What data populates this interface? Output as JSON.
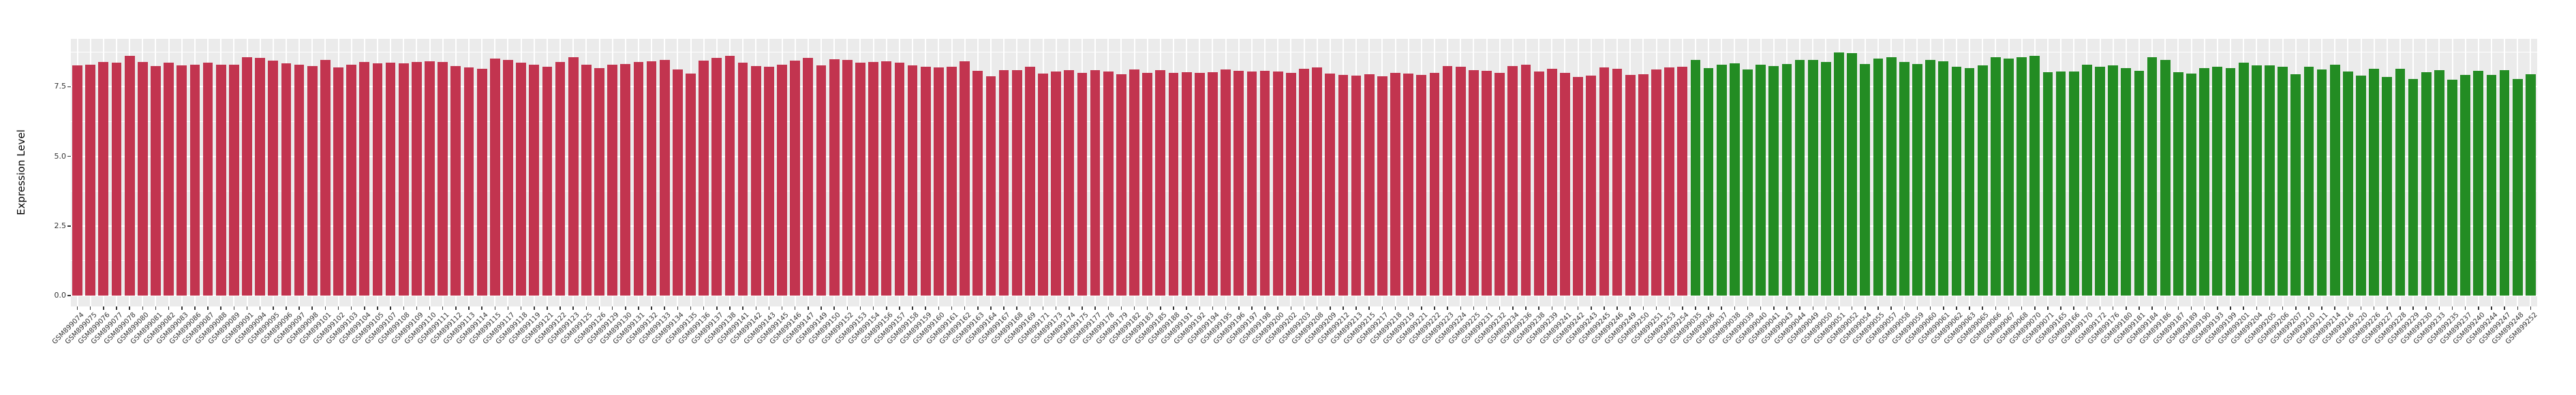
{
  "chart_data": {
    "type": "bar",
    "title": "",
    "xlabel": "",
    "ylabel": "Expression Level",
    "ytick_labels": [
      "0.0",
      "2.5",
      "5.0",
      "7.5"
    ],
    "ytick_values": [
      0,
      2.5,
      5.0,
      7.5
    ],
    "yminor_values": [
      1.25,
      3.75,
      6.25,
      8.75
    ],
    "ylim": [
      0,
      9.17
    ],
    "grid": "on",
    "legend": "none",
    "panel_background": "#EBEBEB",
    "grid_color": "#FFFFFF",
    "axis_text_color": "#333333",
    "bar_colors": {
      "left_group": "#C2344F",
      "right_group": "#238C23"
    },
    "group_split_index": 124,
    "categories": [
      "GSM899074",
      "GSM899075",
      "GSM899076",
      "GSM899077",
      "GSM899078",
      "GSM899080",
      "GSM899081",
      "GSM899082",
      "GSM899083",
      "GSM899086",
      "GSM899087",
      "GSM899088",
      "GSM899089",
      "GSM899091",
      "GSM899094",
      "GSM899095",
      "GSM899096",
      "GSM899097",
      "GSM899098",
      "GSM899101",
      "GSM899102",
      "GSM899103",
      "GSM899104",
      "GSM899105",
      "GSM899107",
      "GSM899108",
      "GSM899109",
      "GSM899110",
      "GSM899111",
      "GSM899112",
      "GSM899113",
      "GSM899114",
      "GSM899115",
      "GSM899117",
      "GSM899118",
      "GSM899119",
      "GSM899121",
      "GSM899122",
      "GSM899123",
      "GSM899125",
      "GSM899126",
      "GSM899129",
      "GSM899130",
      "GSM899131",
      "GSM899132",
      "GSM899133",
      "GSM899134",
      "GSM899135",
      "GSM899136",
      "GSM899137",
      "GSM899138",
      "GSM899141",
      "GSM899142",
      "GSM899143",
      "GSM899145",
      "GSM899146",
      "GSM899147",
      "GSM899149",
      "GSM899150",
      "GSM899152",
      "GSM899153",
      "GSM899154",
      "GSM899156",
      "GSM899157",
      "GSM899158",
      "GSM899159",
      "GSM899160",
      "GSM899161",
      "GSM899162",
      "GSM899163",
      "GSM899164",
      "GSM899167",
      "GSM899168",
      "GSM899169",
      "GSM899171",
      "GSM899173",
      "GSM899174",
      "GSM899175",
      "GSM899177",
      "GSM899178",
      "GSM899179",
      "GSM899182",
      "GSM899183",
      "GSM899185",
      "GSM899188",
      "GSM899191",
      "GSM899192",
      "GSM899194",
      "GSM899195",
      "GSM899196",
      "GSM899197",
      "GSM899198",
      "GSM899200",
      "GSM899202",
      "GSM899203",
      "GSM899208",
      "GSM899209",
      "GSM899212",
      "GSM899213",
      "GSM899215",
      "GSM899217",
      "GSM899218",
      "GSM899219",
      "GSM899221",
      "GSM899222",
      "GSM899223",
      "GSM899224",
      "GSM899225",
      "GSM899231",
      "GSM899232",
      "GSM899234",
      "GSM899236",
      "GSM899238",
      "GSM899239",
      "GSM899241",
      "GSM899242",
      "GSM899243",
      "GSM899245",
      "GSM899246",
      "GSM899249",
      "GSM899250",
      "GSM899251",
      "GSM899253",
      "GSM899254",
      "GSM899035",
      "GSM899036",
      "GSM899037",
      "GSM899038",
      "GSM899039",
      "GSM899040",
      "GSM899041",
      "GSM899043",
      "GSM899044",
      "GSM899049",
      "GSM899050",
      "GSM899051",
      "GSM899052",
      "GSM899054",
      "GSM899055",
      "GSM899057",
      "GSM899058",
      "GSM899059",
      "GSM899060",
      "GSM899061",
      "GSM899062",
      "GSM899063",
      "GSM899065",
      "GSM899066",
      "GSM899067",
      "GSM899068",
      "GSM899070",
      "GSM899071",
      "GSM899165",
      "GSM899166",
      "GSM899170",
      "GSM899172",
      "GSM899176",
      "GSM899180",
      "GSM899181",
      "GSM899184",
      "GSM899186",
      "GSM899187",
      "GSM899189",
      "GSM899190",
      "GSM899193",
      "GSM899199",
      "GSM899201",
      "GSM899204",
      "GSM899205",
      "GSM899206",
      "GSM899207",
      "GSM899210",
      "GSM899211",
      "GSM899214",
      "GSM899216",
      "GSM899220",
      "GSM899226",
      "GSM899227",
      "GSM899228",
      "GSM899229",
      "GSM899230",
      "GSM899233",
      "GSM899235",
      "GSM899237",
      "GSM899240",
      "GSM899244",
      "GSM899247",
      "GSM899248",
      "GSM899252"
    ],
    "values": [
      8.27,
      8.3,
      8.4,
      8.36,
      8.61,
      8.39,
      8.25,
      8.37,
      8.27,
      8.29,
      8.36,
      8.3,
      8.3,
      8.55,
      8.54,
      8.44,
      8.34,
      8.29,
      8.24,
      8.47,
      8.2,
      8.3,
      8.38,
      8.34,
      8.37,
      8.34,
      8.4,
      8.42,
      8.38,
      8.24,
      8.2,
      8.14,
      8.52,
      8.46,
      8.37,
      8.28,
      8.22,
      8.4,
      8.56,
      8.29,
      8.17,
      8.28,
      8.32,
      8.4,
      8.42,
      8.47,
      8.12,
      7.97,
      8.44,
      8.54,
      8.62,
      8.37,
      8.24,
      8.22,
      8.3,
      8.44,
      8.54,
      8.27,
      8.48,
      8.45,
      8.36,
      8.38,
      8.42,
      8.36,
      8.27,
      8.22,
      8.2,
      8.22,
      8.42,
      8.07,
      7.87,
      8.1,
      8.09,
      8.22,
      7.97,
      8.04,
      8.09,
      8.0,
      8.1,
      8.04,
      7.95,
      8.12,
      8.0,
      8.09,
      7.99,
      8.03,
      7.99,
      8.01,
      8.12,
      8.07,
      8.04,
      8.06,
      8.05,
      8.0,
      8.14,
      8.2,
      7.97,
      7.92,
      7.9,
      7.95,
      7.87,
      7.99,
      7.97,
      7.92,
      8.0,
      8.25,
      8.22,
      8.1,
      8.07,
      8.0,
      8.24,
      8.3,
      8.04,
      8.14,
      8.0,
      7.84,
      7.89,
      8.19,
      8.14,
      7.92,
      7.94,
      8.12,
      8.19,
      8.22,
      8.45,
      8.18,
      8.28,
      8.33,
      8.13,
      8.28,
      8.23,
      8.32,
      8.47,
      8.45,
      8.38,
      8.72,
      8.7,
      8.32,
      8.5,
      8.55,
      8.38,
      8.32,
      8.47,
      8.42,
      8.22,
      8.18,
      8.27,
      8.55,
      8.5,
      8.55,
      8.6,
      8.02,
      8.05,
      8.05,
      8.3,
      8.22,
      8.27,
      8.17,
      8.07,
      8.55,
      8.45,
      8.02,
      7.97,
      8.17,
      8.22,
      8.17,
      8.37,
      8.27,
      8.27,
      8.22,
      7.95,
      8.22,
      8.12,
      8.3,
      8.05,
      7.9,
      8.15,
      7.85,
      8.14,
      7.77,
      8.02,
      8.1,
      7.75,
      7.93,
      8.06,
      7.92,
      8.1,
      7.78,
      7.96
    ]
  }
}
